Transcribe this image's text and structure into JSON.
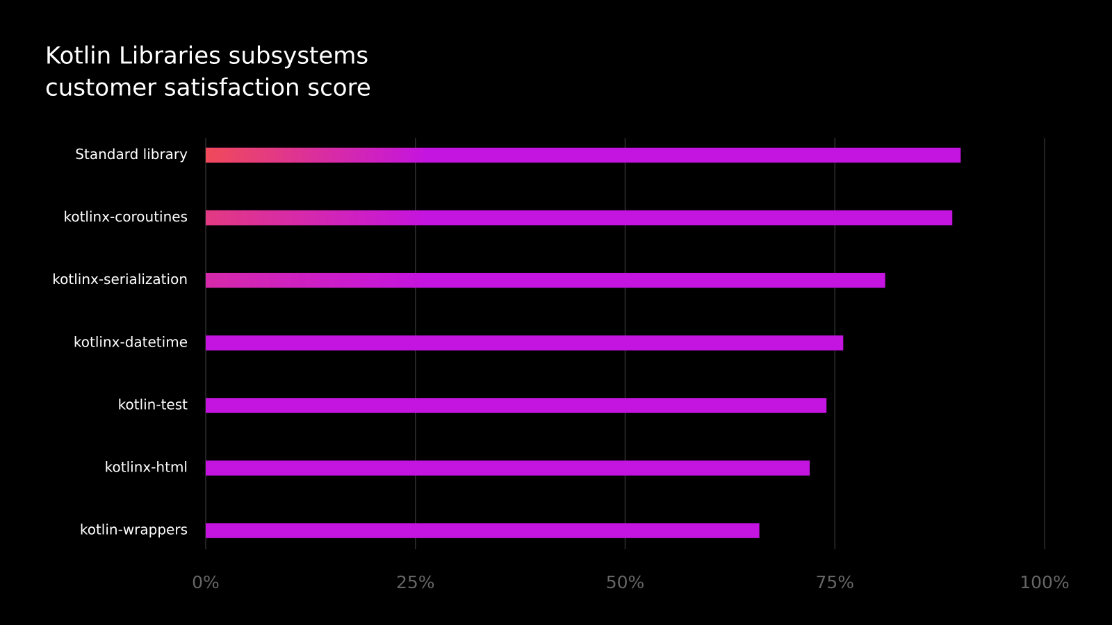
{
  "chart_data": {
    "type": "bar",
    "orientation": "horizontal",
    "title": [
      "Kotlin Libraries subsystems",
      "customer satisfaction score"
    ],
    "categories": [
      "Standard library",
      "kotlinx-coroutines",
      "kotlinx-serialization",
      "kotlinx-datetime",
      "kotlin-test",
      "kotlinx-html",
      "kotlin-wrappers"
    ],
    "values": [
      90,
      89,
      81,
      76,
      74,
      72,
      66
    ],
    "color": "#c414e0",
    "highlight_color": "#f04a5a",
    "xlim": [
      0,
      100
    ],
    "xticks": [
      {
        "value": 0,
        "label": "0%"
      },
      {
        "value": 25,
        "label": "25%"
      },
      {
        "value": 50,
        "label": "50%"
      },
      {
        "value": 75,
        "label": "75%"
      },
      {
        "value": 100,
        "label": "100%"
      }
    ],
    "grid": true
  }
}
